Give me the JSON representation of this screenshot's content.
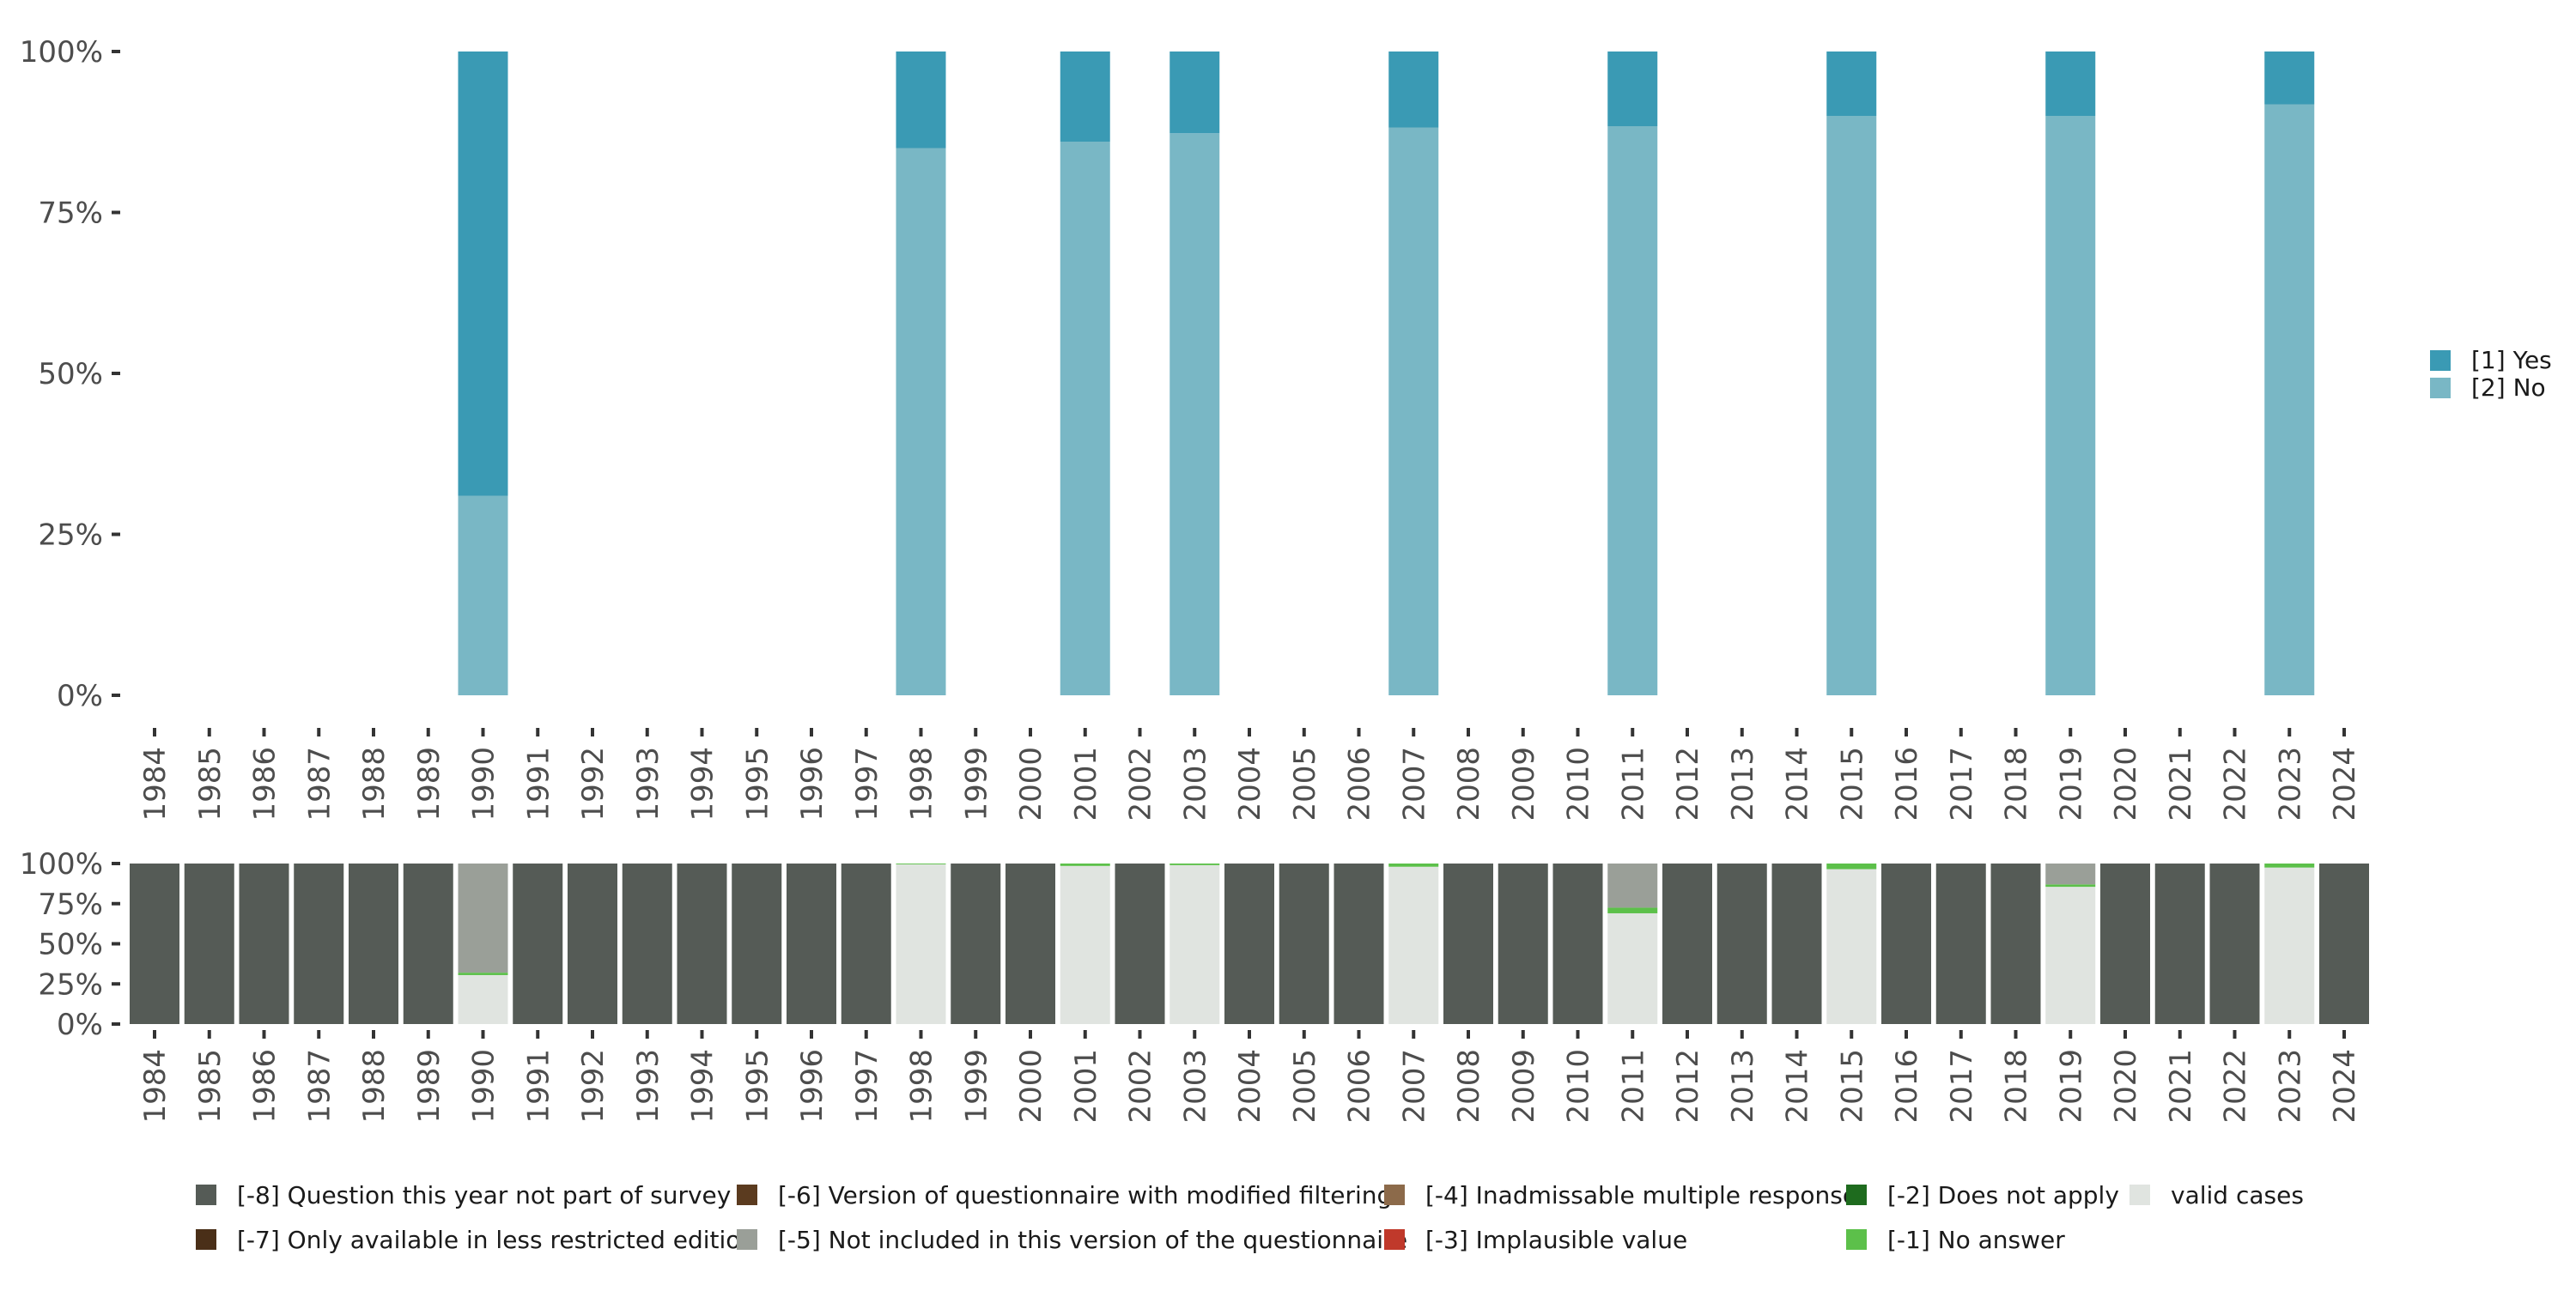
{
  "colors": {
    "yes": "#3a9ab4",
    "no": "#79b7c5",
    "m8": "#555b56",
    "m7": "#4a2f18",
    "m6": "#5b3b1f",
    "m5": "#9a9f98",
    "m4": "#8c6a4a",
    "m3": "#c0392b",
    "m2": "#1e6b1e",
    "m1": "#5cc04a",
    "valid": "#e0e4e0",
    "tick_text": "#4d4d4d"
  },
  "chart_data": [
    {
      "type": "bar",
      "stacked": true,
      "normalized": true,
      "years": [
        "1984",
        "1985",
        "1986",
        "1987",
        "1988",
        "1989",
        "1990",
        "1991",
        "1992",
        "1993",
        "1994",
        "1995",
        "1996",
        "1997",
        "1998",
        "1999",
        "2000",
        "2001",
        "2002",
        "2003",
        "2004",
        "2005",
        "2006",
        "2007",
        "2008",
        "2009",
        "2010",
        "2011",
        "2012",
        "2013",
        "2014",
        "2015",
        "2016",
        "2017",
        "2018",
        "2019",
        "2020",
        "2021",
        "2022",
        "2023",
        "2024"
      ],
      "bars": [
        {
          "year": "1990",
          "no": 31.0,
          "yes": 69.0
        },
        {
          "year": "1998",
          "no": 85.0,
          "yes": 15.0
        },
        {
          "year": "2001",
          "no": 86.0,
          "yes": 14.0
        },
        {
          "year": "2003",
          "no": 87.3,
          "yes": 12.7
        },
        {
          "year": "2007",
          "no": 88.2,
          "yes": 11.8
        },
        {
          "year": "2011",
          "no": 88.4,
          "yes": 11.6
        },
        {
          "year": "2015",
          "no": 90.0,
          "yes": 10.0
        },
        {
          "year": "2019",
          "no": 90.0,
          "yes": 10.0
        },
        {
          "year": "2023",
          "no": 91.8,
          "yes": 8.2
        }
      ],
      "y_ticks": [
        "0%",
        "25%",
        "50%",
        "75%",
        "100%"
      ],
      "ylim": [
        0,
        100
      ],
      "legend": {
        "position": "right",
        "items": [
          {
            "key": "yes",
            "label": "[1] Yes"
          },
          {
            "key": "no",
            "label": "[2] No"
          }
        ]
      }
    },
    {
      "type": "bar",
      "stacked": true,
      "normalized": true,
      "years": [
        "1984",
        "1985",
        "1986",
        "1987",
        "1988",
        "1989",
        "1990",
        "1991",
        "1992",
        "1993",
        "1994",
        "1995",
        "1996",
        "1997",
        "1998",
        "1999",
        "2000",
        "2001",
        "2002",
        "2003",
        "2004",
        "2005",
        "2006",
        "2007",
        "2008",
        "2009",
        "2010",
        "2011",
        "2012",
        "2013",
        "2014",
        "2015",
        "2016",
        "2017",
        "2018",
        "2019",
        "2020",
        "2021",
        "2022",
        "2023",
        "2024"
      ],
      "stacks": {
        "1990": {
          "valid": 30.5,
          "m1": 1.5,
          "m5": 68.0
        },
        "1998": {
          "valid": 99.5,
          "m1": 0.5
        },
        "2001": {
          "valid": 98.5,
          "m1": 1.5
        },
        "2003": {
          "valid": 99.0,
          "m1": 1.0
        },
        "2007": {
          "valid": 98.0,
          "m1": 2.0
        },
        "2011": {
          "valid": 69.0,
          "m1": 3.5,
          "m5": 27.5
        },
        "2015": {
          "valid": 96.5,
          "m1": 3.5
        },
        "2019": {
          "valid": 85.5,
          "m1": 1.5,
          "m5": 13.0
        },
        "2023": {
          "valid": 97.5,
          "m1": 2.5
        }
      },
      "default_stack": {
        "m8": 100
      },
      "stack_order": [
        "valid",
        "m1",
        "m2",
        "m3",
        "m4",
        "m5",
        "m6",
        "m7",
        "m8"
      ],
      "y_ticks": [
        "0%",
        "25%",
        "50%",
        "75%",
        "100%"
      ],
      "ylim": [
        0,
        100
      ],
      "legend": {
        "position": "bottom",
        "items": [
          {
            "key": "m8",
            "label": "[-8] Question this year not part of survey"
          },
          {
            "key": "m7",
            "label": "[-7] Only available in less restricted edition"
          },
          {
            "key": "m6",
            "label": "[-6] Version of questionnaire with modified filtering"
          },
          {
            "key": "m5",
            "label": "[-5] Not included in this version of the questionnaire"
          },
          {
            "key": "m4",
            "label": "[-4] Inadmissable multiple response"
          },
          {
            "key": "m3",
            "label": "[-3] Implausible value"
          },
          {
            "key": "m2",
            "label": "[-2] Does not apply"
          },
          {
            "key": "m1",
            "label": "[-1] No answer"
          },
          {
            "key": "valid",
            "label": "valid cases"
          }
        ]
      }
    }
  ]
}
